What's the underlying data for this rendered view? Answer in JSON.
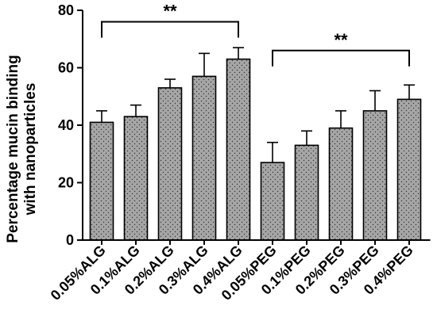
{
  "chart_data": {
    "type": "bar",
    "title": "",
    "ylabel_lines": [
      "Percentage mucin binding",
      "with nanoparticles"
    ],
    "xlabel": "",
    "categories": [
      "0.05%ALG",
      "0.1%ALG",
      "0.2%ALG",
      "0.3%ALG",
      "0.4%ALG",
      "0.05%PEG",
      "0.1%PEG",
      "0.2%PEG",
      "0.3%PEG",
      "0.4%PEG"
    ],
    "values": [
      41,
      43,
      53,
      57,
      63,
      27,
      33,
      39,
      45,
      49
    ],
    "errors": [
      4,
      4,
      3,
      8,
      4,
      7,
      5,
      6,
      7,
      5
    ],
    "ylim": [
      0,
      80
    ],
    "yticks": [
      0,
      20,
      40,
      60,
      80
    ],
    "bar_fill": "#a6a6a6",
    "bar_pattern": "dotted",
    "grid": false,
    "significance": [
      {
        "from_index": 0,
        "to_index": 4,
        "label": "**",
        "level": 76
      },
      {
        "from_index": 5,
        "to_index": 9,
        "label": "**",
        "level": 66
      }
    ]
  }
}
